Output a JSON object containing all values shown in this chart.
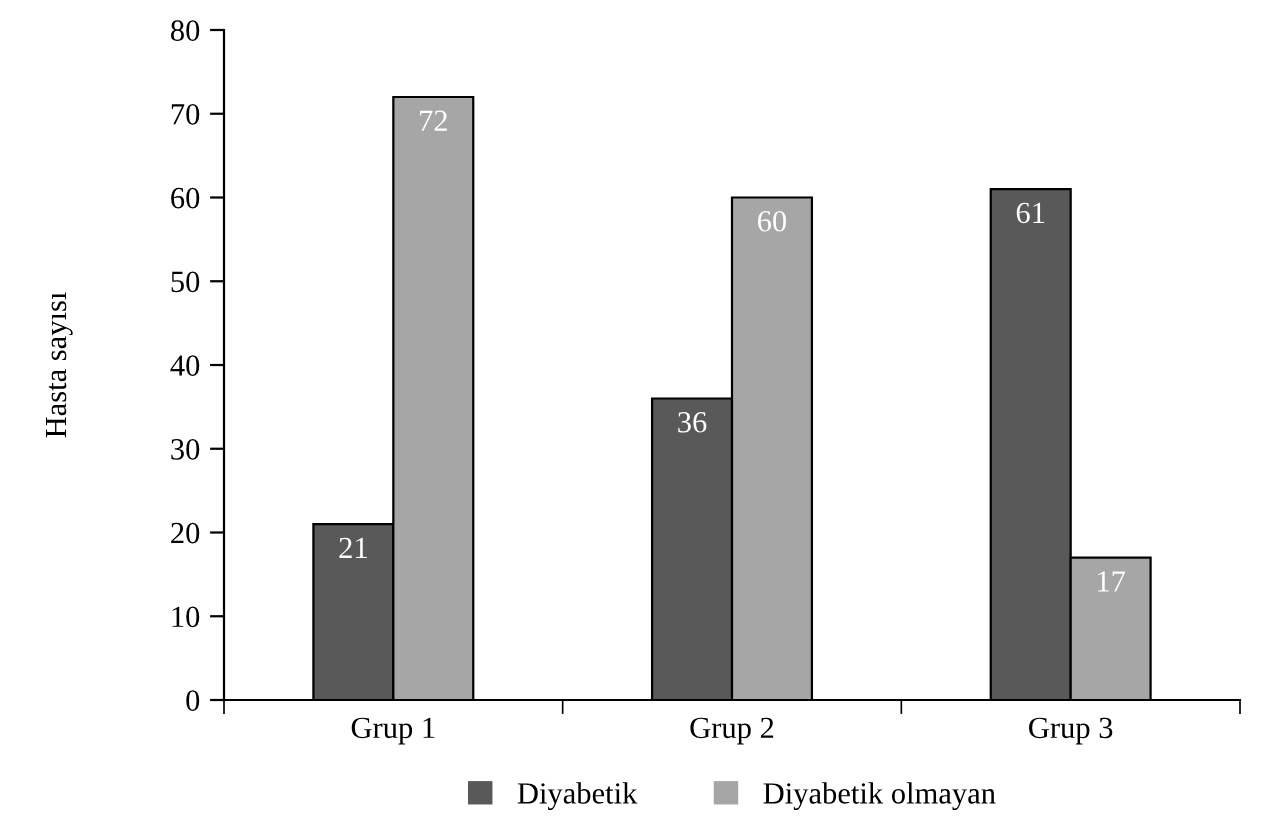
{
  "chart_data": {
    "type": "bar",
    "ylabel": "Hasta sayısı",
    "categories": [
      "Grup 1",
      "Grup 2",
      "Grup 3"
    ],
    "series": [
      {
        "name": "Diyabetik",
        "color": "#595959",
        "values": [
          21,
          36,
          61
        ]
      },
      {
        "name": "Diyabetik olmayan",
        "color": "#a6a6a6",
        "values": [
          72,
          60,
          17
        ]
      }
    ],
    "ylim": [
      0,
      80
    ],
    "yticks": [
      0,
      10,
      20,
      30,
      40,
      50,
      60,
      70,
      80
    ],
    "data_labels": true,
    "legend": "bottom",
    "grid": false
  }
}
